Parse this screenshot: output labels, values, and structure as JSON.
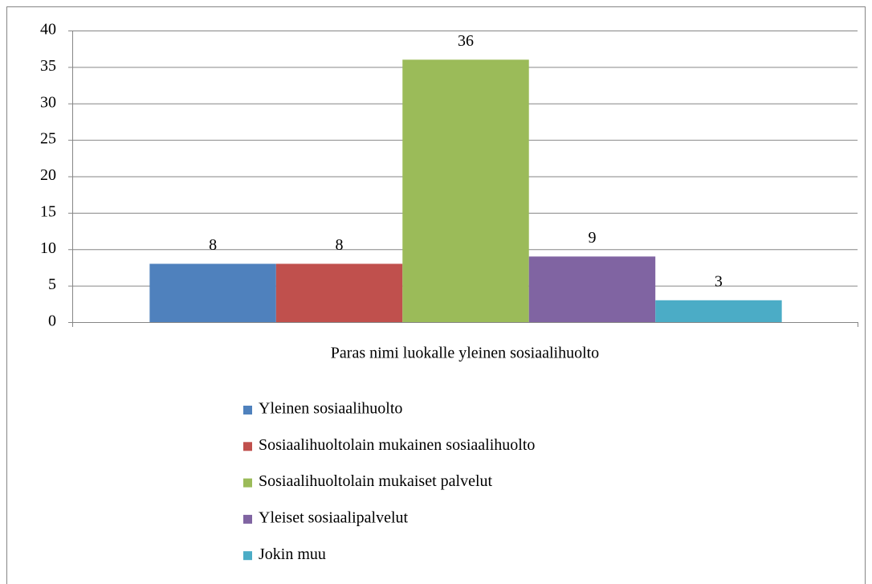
{
  "chart_data": {
    "type": "bar",
    "categories": [
      "Paras nimi luokalle yleinen sosiaalihuolto"
    ],
    "series": [
      {
        "name": "Yleinen sosiaalihuolto",
        "color": "#4f81bd",
        "values": [
          8
        ]
      },
      {
        "name": "Sosiaalihuoltolain mukainen sosiaalihuolto",
        "color": "#c0504d",
        "values": [
          8
        ]
      },
      {
        "name": "Sosiaalihuoltolain mukaiset palvelut",
        "color": "#9bbb59",
        "values": [
          36
        ]
      },
      {
        "name": "Yleiset sosiaalipalvelut",
        "color": "#8064a2",
        "values": [
          9
        ]
      },
      {
        "name": "Jokin muu",
        "color": "#4bacc6",
        "values": [
          3
        ]
      }
    ],
    "ylim": [
      0,
      40
    ],
    "yticks": [
      0,
      5,
      10,
      15,
      20,
      25,
      30,
      35,
      40
    ],
    "grid": true,
    "legend": "bottom"
  }
}
